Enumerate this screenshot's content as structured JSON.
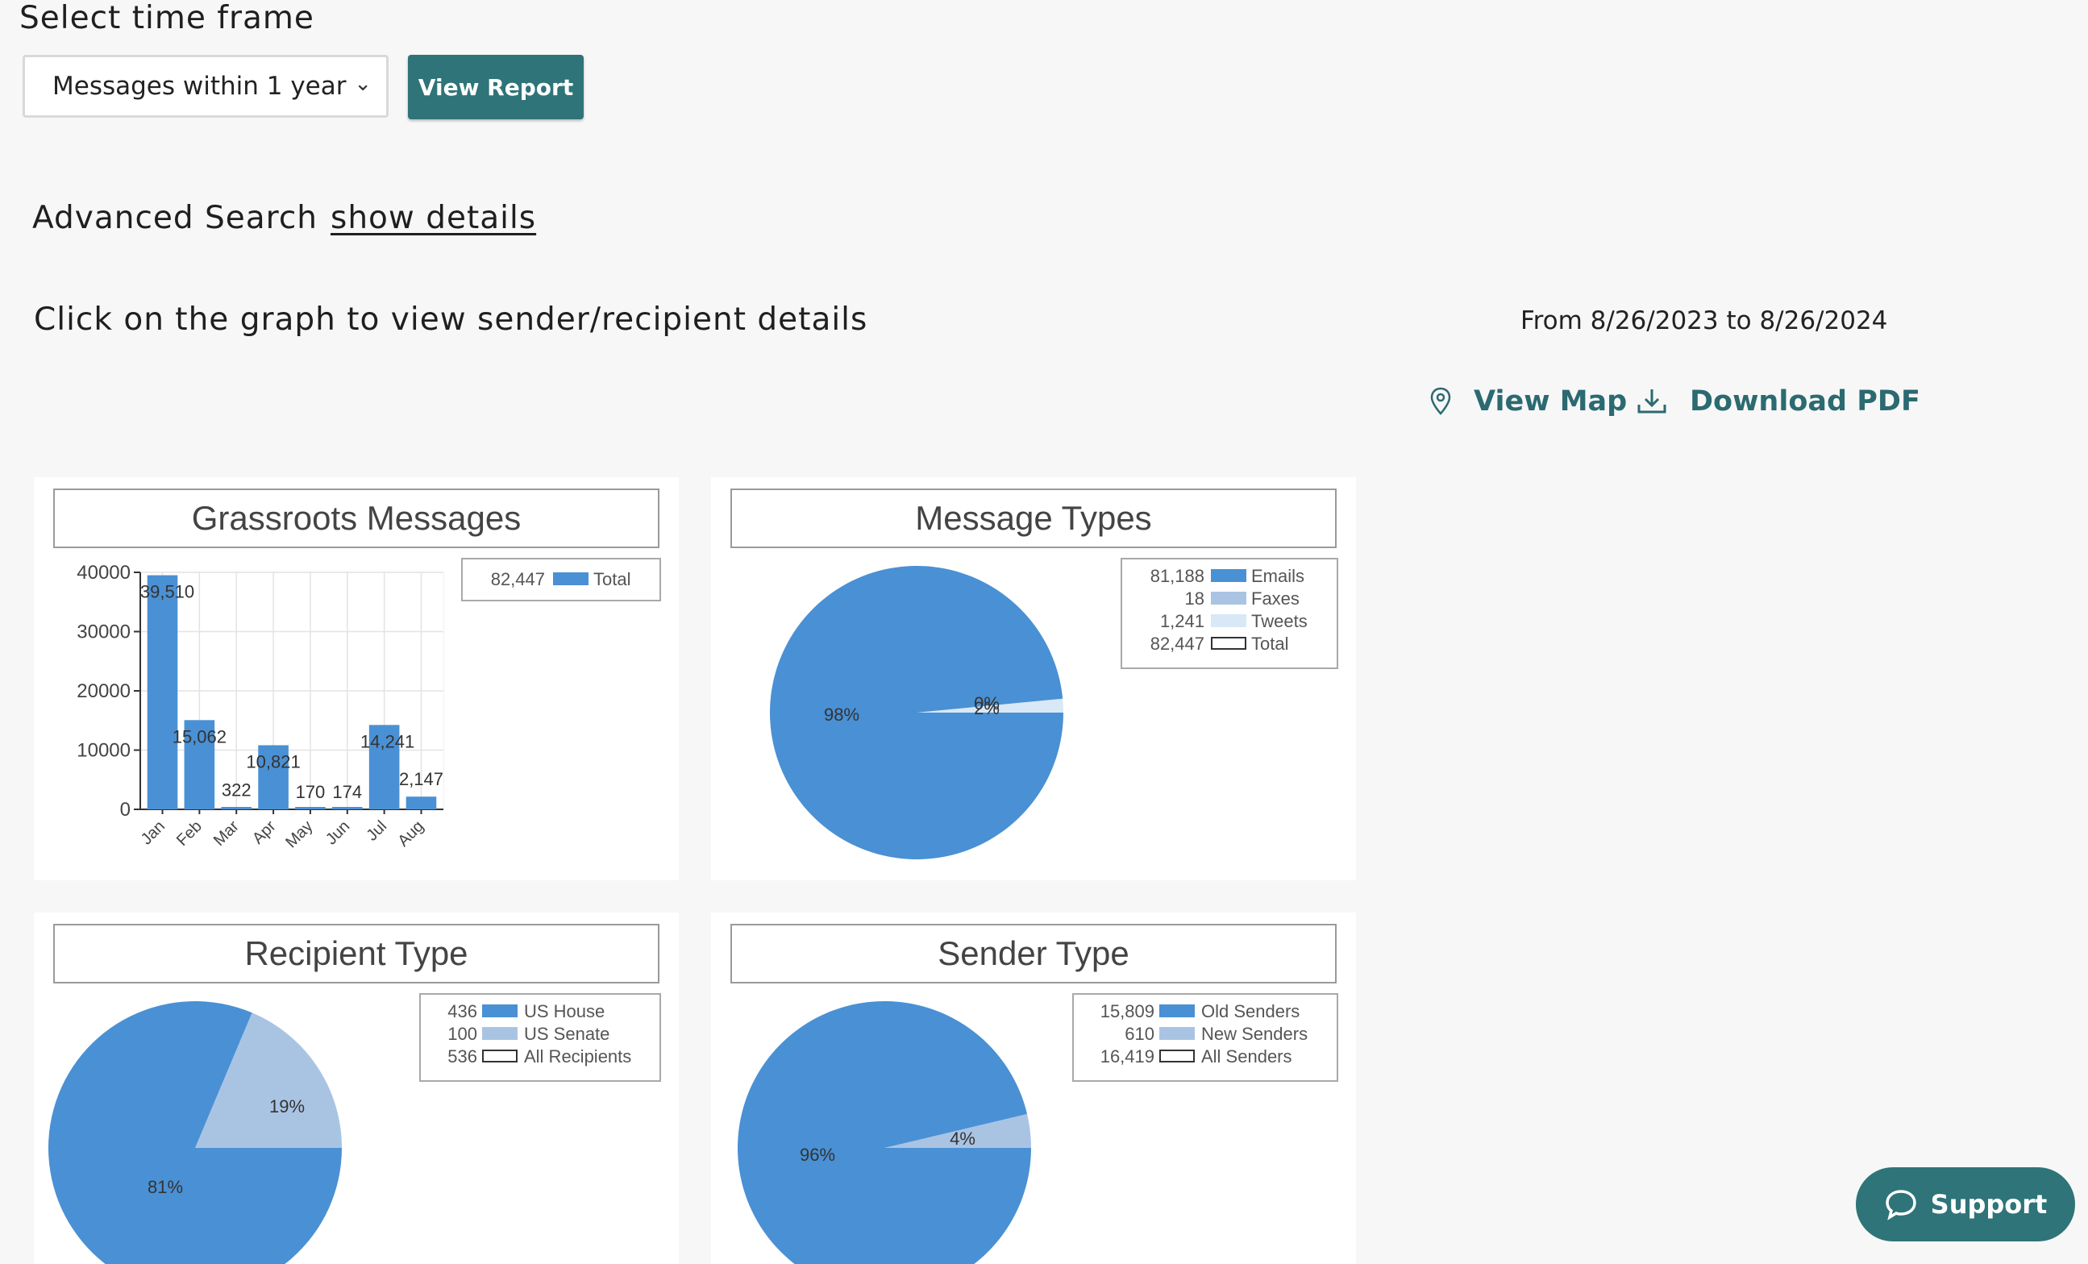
{
  "header": {
    "timeframe_label": "Select time frame",
    "timeframe_selected": "Messages within 1 year",
    "view_report": "View Report",
    "advanced_search": "Advanced Search",
    "show_details": "show details",
    "instruction": "Click on the graph to view sender/recipient details",
    "date_range": "From 8/26/2023 to 8/26/2024",
    "view_map": "View Map",
    "download_pdf": "Download PDF"
  },
  "support_label": "Support",
  "colors": {
    "accent": "#2e7479",
    "series_dark": "#4a90d4",
    "series_light": "#a9c4e3",
    "series_pale": "#d9e8f7"
  },
  "charts": {
    "grassroots": {
      "title": "Grassroots Messages",
      "legend": [
        {
          "value": "82,447",
          "name": "Total"
        }
      ]
    },
    "types": {
      "title": "Message Types",
      "legend": [
        {
          "value": "81,188",
          "name": "Emails"
        },
        {
          "value": "18",
          "name": "Faxes"
        },
        {
          "value": "1,241",
          "name": "Tweets"
        },
        {
          "value": "82,447",
          "name": "Total"
        }
      ]
    },
    "recipient": {
      "title": "Recipient Type",
      "legend": [
        {
          "value": "436",
          "name": "US House"
        },
        {
          "value": "100",
          "name": "US Senate"
        },
        {
          "value": "536",
          "name": "All Recipients"
        }
      ]
    },
    "sender": {
      "title": "Sender Type",
      "legend": [
        {
          "value": "15,809",
          "name": "Old Senders"
        },
        {
          "value": "610",
          "name": "New Senders"
        },
        {
          "value": "16,419",
          "name": "All Senders"
        }
      ]
    }
  },
  "chart_data": [
    {
      "type": "bar",
      "title": "Grassroots Messages",
      "categories": [
        "Jan",
        "Feb",
        "Mar",
        "Apr",
        "May",
        "Jun",
        "Jul",
        "Aug"
      ],
      "series": [
        {
          "name": "Total",
          "values": [
            39510,
            15062,
            322,
            10821,
            170,
            174,
            14241,
            2147
          ]
        }
      ],
      "data_labels": [
        "39,510",
        "15,062",
        "322",
        "10,821",
        "170",
        "174",
        "14,241",
        "2,147"
      ],
      "yticks": [
        "0",
        "10000",
        "20000",
        "30000",
        "40000"
      ],
      "ylim": [
        0,
        40000
      ],
      "grid": true,
      "legend_position": "top-right"
    },
    {
      "type": "pie",
      "title": "Message Types",
      "labels": [
        "Emails",
        "Faxes",
        "Tweets"
      ],
      "values": [
        81188,
        18,
        1241
      ],
      "slice_labels": [
        "98%",
        "0%",
        "2%"
      ]
    },
    {
      "type": "pie",
      "title": "Recipient Type",
      "labels": [
        "US House",
        "US Senate"
      ],
      "values": [
        436,
        100
      ],
      "slice_labels": [
        "81%",
        "19%"
      ]
    },
    {
      "type": "pie",
      "title": "Sender Type",
      "labels": [
        "Old Senders",
        "New Senders"
      ],
      "values": [
        15809,
        610
      ],
      "slice_labels": [
        "96%",
        "4%"
      ]
    }
  ]
}
